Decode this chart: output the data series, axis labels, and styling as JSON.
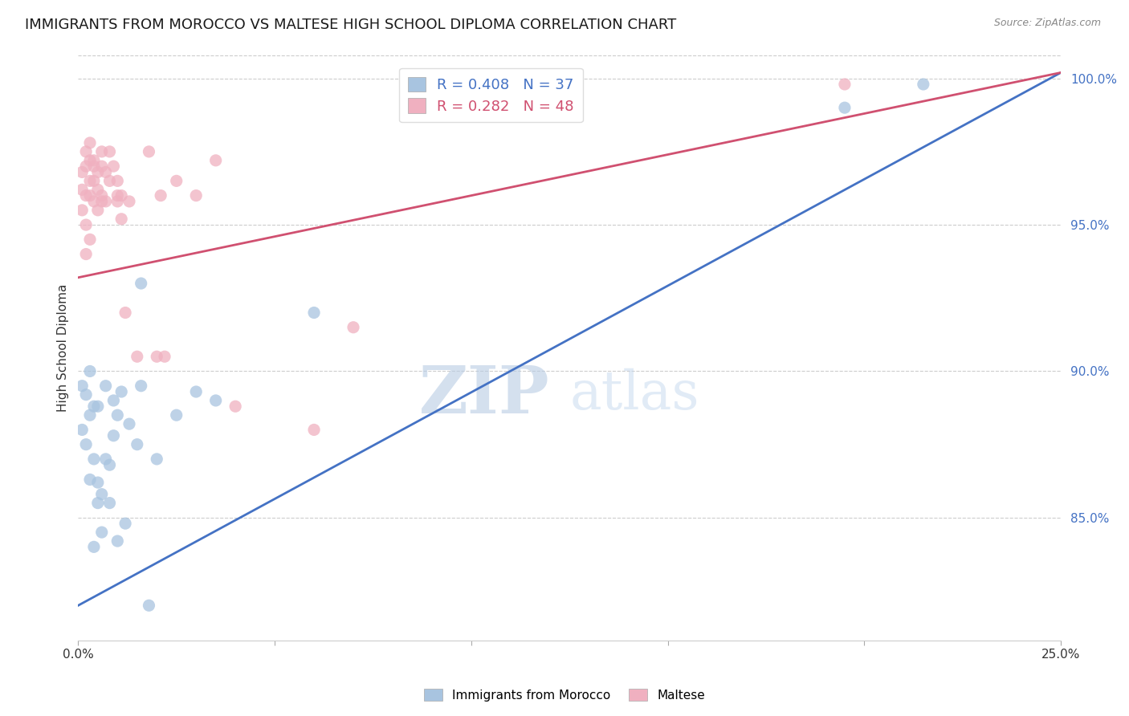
{
  "title": "IMMIGRANTS FROM MOROCCO VS MALTESE HIGH SCHOOL DIPLOMA CORRELATION CHART",
  "source": "Source: ZipAtlas.com",
  "ylabel": "High School Diploma",
  "yticks": [
    0.85,
    0.9,
    0.95,
    1.0
  ],
  "ytick_labels": [
    "85.0%",
    "90.0%",
    "95.0%",
    "100.0%"
  ],
  "xlim": [
    0.0,
    0.25
  ],
  "ylim": [
    0.808,
    1.008
  ],
  "legend_blue_r": "R = 0.408",
  "legend_blue_n": "N = 37",
  "legend_pink_r": "R = 0.282",
  "legend_pink_n": "N = 48",
  "label_blue": "Immigrants from Morocco",
  "label_pink": "Maltese",
  "blue_color": "#a8c4e0",
  "pink_color": "#f0b0c0",
  "blue_line_color": "#4472c4",
  "pink_line_color": "#d05070",
  "blue_scatter_x": [
    0.001,
    0.001,
    0.002,
    0.002,
    0.003,
    0.003,
    0.004,
    0.004,
    0.005,
    0.005,
    0.005,
    0.006,
    0.006,
    0.007,
    0.007,
    0.008,
    0.008,
    0.009,
    0.009,
    0.01,
    0.01,
    0.011,
    0.012,
    0.013,
    0.015,
    0.016,
    0.016,
    0.018,
    0.02,
    0.025,
    0.03,
    0.035,
    0.06,
    0.195,
    0.215,
    0.003,
    0.004
  ],
  "blue_scatter_y": [
    0.895,
    0.88,
    0.892,
    0.875,
    0.9,
    0.885,
    0.888,
    0.87,
    0.862,
    0.855,
    0.888,
    0.858,
    0.845,
    0.895,
    0.87,
    0.868,
    0.855,
    0.89,
    0.878,
    0.842,
    0.885,
    0.893,
    0.848,
    0.882,
    0.875,
    0.895,
    0.93,
    0.82,
    0.87,
    0.885,
    0.893,
    0.89,
    0.92,
    0.99,
    0.998,
    0.863,
    0.84
  ],
  "pink_scatter_x": [
    0.001,
    0.001,
    0.001,
    0.002,
    0.002,
    0.002,
    0.002,
    0.003,
    0.003,
    0.003,
    0.003,
    0.004,
    0.004,
    0.004,
    0.004,
    0.005,
    0.005,
    0.005,
    0.006,
    0.006,
    0.006,
    0.006,
    0.007,
    0.007,
    0.008,
    0.008,
    0.009,
    0.01,
    0.01,
    0.01,
    0.011,
    0.011,
    0.012,
    0.013,
    0.015,
    0.018,
    0.02,
    0.021,
    0.022,
    0.025,
    0.03,
    0.035,
    0.04,
    0.06,
    0.07,
    0.195,
    0.002,
    0.003
  ],
  "pink_scatter_y": [
    0.955,
    0.962,
    0.968,
    0.95,
    0.96,
    0.97,
    0.975,
    0.972,
    0.965,
    0.978,
    0.96,
    0.97,
    0.965,
    0.972,
    0.958,
    0.968,
    0.962,
    0.955,
    0.975,
    0.97,
    0.96,
    0.958,
    0.968,
    0.958,
    0.975,
    0.965,
    0.97,
    0.96,
    0.958,
    0.965,
    0.952,
    0.96,
    0.92,
    0.958,
    0.905,
    0.975,
    0.905,
    0.96,
    0.905,
    0.965,
    0.96,
    0.972,
    0.888,
    0.88,
    0.915,
    0.998,
    0.94,
    0.945
  ],
  "blue_line_x0": 0.0,
  "blue_line_y0": 0.82,
  "blue_line_x1": 0.25,
  "blue_line_y1": 1.002,
  "pink_line_x0": 0.0,
  "pink_line_y0": 0.932,
  "pink_line_x1": 0.25,
  "pink_line_y1": 1.002,
  "watermark_zip": "ZIP",
  "watermark_atlas": "atlas",
  "background_color": "#ffffff",
  "title_fontsize": 13,
  "axis_label_fontsize": 11,
  "tick_fontsize": 11,
  "legend_fontsize": 13,
  "scatter_size": 120
}
